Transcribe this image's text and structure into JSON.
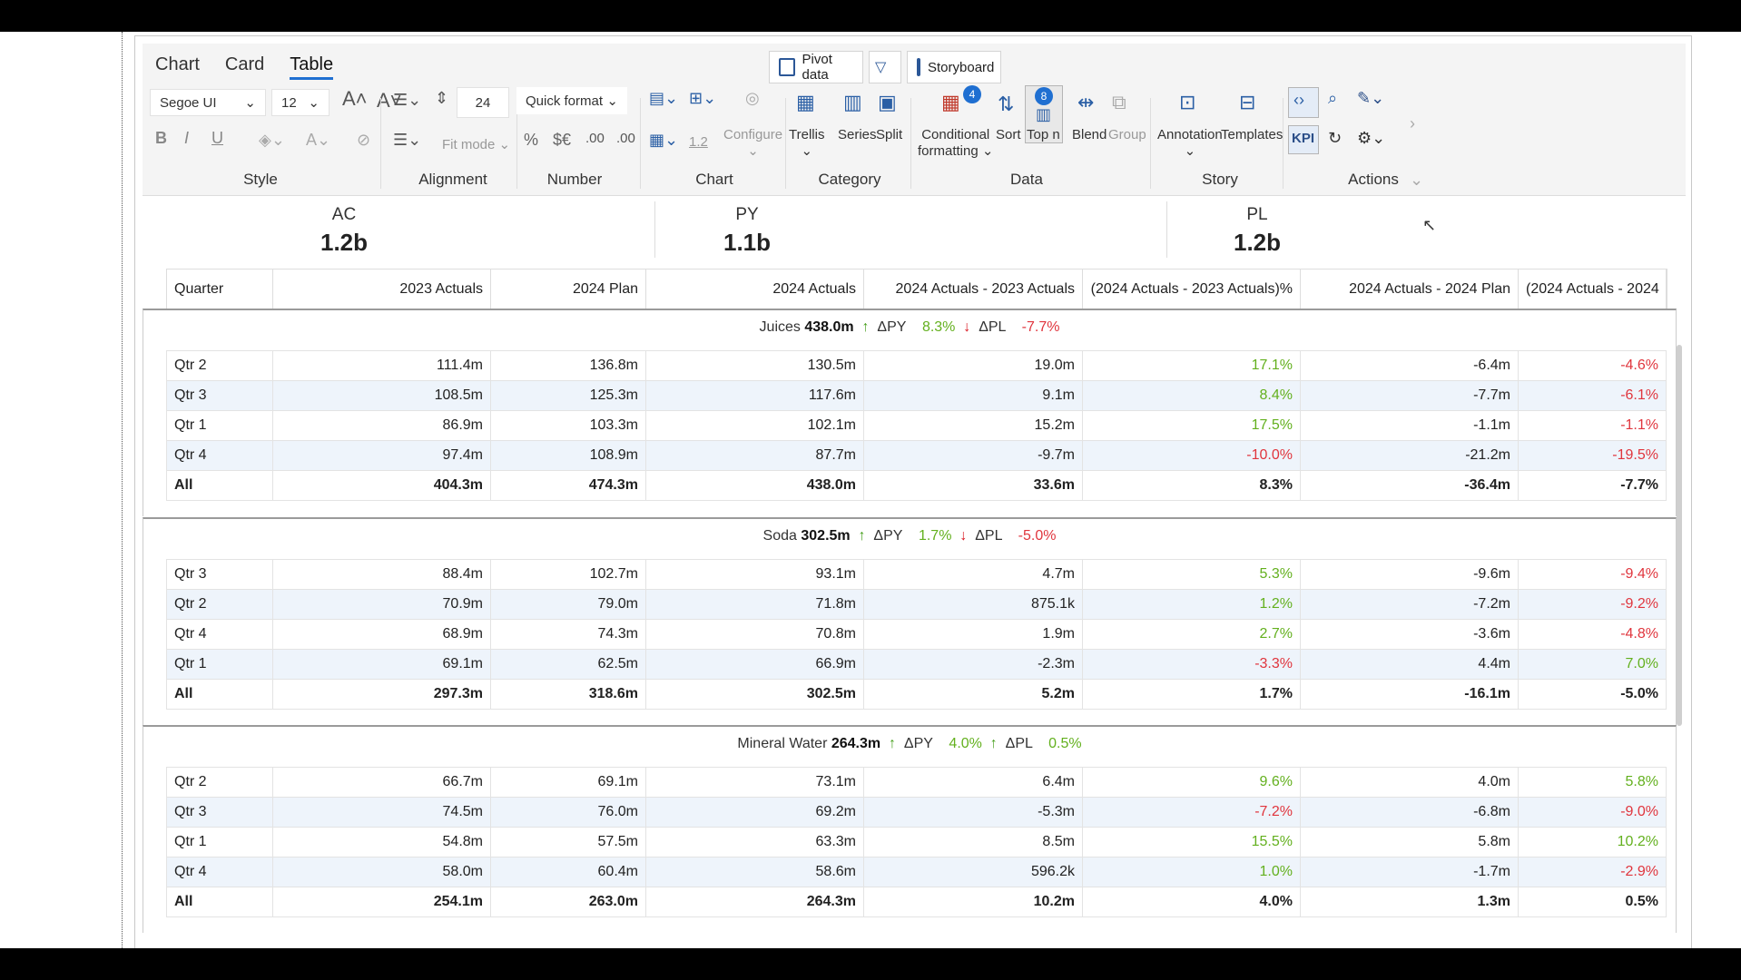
{
  "tabs": [
    "Chart",
    "Card",
    "Table"
  ],
  "topbuttons": {
    "pivot": "Pivot data",
    "storyboard": "Storyboard"
  },
  "style": {
    "font": "Segoe UI",
    "size": "12",
    "group": "Style"
  },
  "alignment": {
    "spacing": "24",
    "fit_mode": "Fit mode",
    "group": "Alignment"
  },
  "number": {
    "quick_format": "Quick format",
    "group": "Number",
    "pct": "%",
    "cur": "$€",
    "dec_less": ".00",
    "dec_more": ".00"
  },
  "chart": {
    "configure": "Configure",
    "group": "Chart",
    "decimals": "1.2"
  },
  "category": {
    "trellis": "Trellis",
    "series": "Series",
    "split": "Split",
    "group": "Category"
  },
  "data": {
    "conditional": "Conditional",
    "formatting": "formatting",
    "cond_badge": "4",
    "sort": "Sort",
    "topn": "Top n",
    "topn_badge": "8",
    "blend": "Blend",
    "groupbtn": "Group",
    "group": "Data"
  },
  "story": {
    "annotation": "Annotation",
    "templates": "Templates",
    "group": "Story"
  },
  "actions": {
    "kpi": "KPI",
    "group": "Actions"
  },
  "kpis": [
    {
      "title": "AC",
      "value": "1.2b"
    },
    {
      "title": "PY",
      "value": "1.1b"
    },
    {
      "title": "PL",
      "value": "1.2b"
    }
  ],
  "headers": [
    "Quarter",
    "2023 Actuals",
    "2024 Plan",
    "2024 Actuals",
    "2024 Actuals - 2023 Actuals",
    "(2024 Actuals - 2023 Actuals)%",
    "2024 Actuals - 2024 Plan",
    "(2024 Actuals - 2024"
  ],
  "labels": {
    "dpy": "ΔPY",
    "dpl": "ΔPL"
  },
  "groups": [
    {
      "name": "Juices",
      "total": "438.0m",
      "py": "8.3%",
      "pl": "-7.7%",
      "rows": [
        [
          "Qtr 2",
          "111.4m",
          "136.8m",
          "130.5m",
          "19.0m",
          "17.1%",
          "-6.4m",
          "-4.6%"
        ],
        [
          "Qtr 3",
          "108.5m",
          "125.3m",
          "117.6m",
          "9.1m",
          "8.4%",
          "-7.7m",
          "-6.1%"
        ],
        [
          "Qtr 1",
          "86.9m",
          "103.3m",
          "102.1m",
          "15.2m",
          "17.5%",
          "-1.1m",
          "-1.1%"
        ],
        [
          "Qtr 4",
          "97.4m",
          "108.9m",
          "87.7m",
          "-9.7m",
          "-10.0%",
          "-21.2m",
          "-19.5%"
        ],
        [
          "All",
          "404.3m",
          "474.3m",
          "438.0m",
          "33.6m",
          "8.3%",
          "-36.4m",
          "-7.7%"
        ]
      ]
    },
    {
      "name": "Soda",
      "total": "302.5m",
      "py": "1.7%",
      "pl": "-5.0%",
      "rows": [
        [
          "Qtr 3",
          "88.4m",
          "102.7m",
          "93.1m",
          "4.7m",
          "5.3%",
          "-9.6m",
          "-9.4%"
        ],
        [
          "Qtr 2",
          "70.9m",
          "79.0m",
          "71.8m",
          "875.1k",
          "1.2%",
          "-7.2m",
          "-9.2%"
        ],
        [
          "Qtr 4",
          "68.9m",
          "74.3m",
          "70.8m",
          "1.9m",
          "2.7%",
          "-3.6m",
          "-4.8%"
        ],
        [
          "Qtr 1",
          "69.1m",
          "62.5m",
          "66.9m",
          "-2.3m",
          "-3.3%",
          "4.4m",
          "7.0%"
        ],
        [
          "All",
          "297.3m",
          "318.6m",
          "302.5m",
          "5.2m",
          "1.7%",
          "-16.1m",
          "-5.0%"
        ]
      ]
    },
    {
      "name": "Mineral Water",
      "total": "264.3m",
      "py": "4.0%",
      "pl": "0.5%",
      "rows": [
        [
          "Qtr 2",
          "66.7m",
          "69.1m",
          "73.1m",
          "6.4m",
          "9.6%",
          "4.0m",
          "5.8%"
        ],
        [
          "Qtr 3",
          "74.5m",
          "76.0m",
          "69.2m",
          "-5.3m",
          "-7.2%",
          "-6.8m",
          "-9.0%"
        ],
        [
          "Qtr 1",
          "54.8m",
          "57.5m",
          "63.3m",
          "8.5m",
          "15.5%",
          "5.8m",
          "10.2%"
        ],
        [
          "Qtr 4",
          "58.0m",
          "60.4m",
          "58.6m",
          "596.2k",
          "1.0%",
          "-1.7m",
          "-2.9%"
        ],
        [
          "All",
          "254.1m",
          "263.0m",
          "264.3m",
          "10.2m",
          "4.0%",
          "1.3m",
          "0.5%"
        ]
      ]
    }
  ],
  "colors": {
    "positive": "#63b01e",
    "negative": "#e0353d",
    "accent": "#1f6fd1"
  }
}
